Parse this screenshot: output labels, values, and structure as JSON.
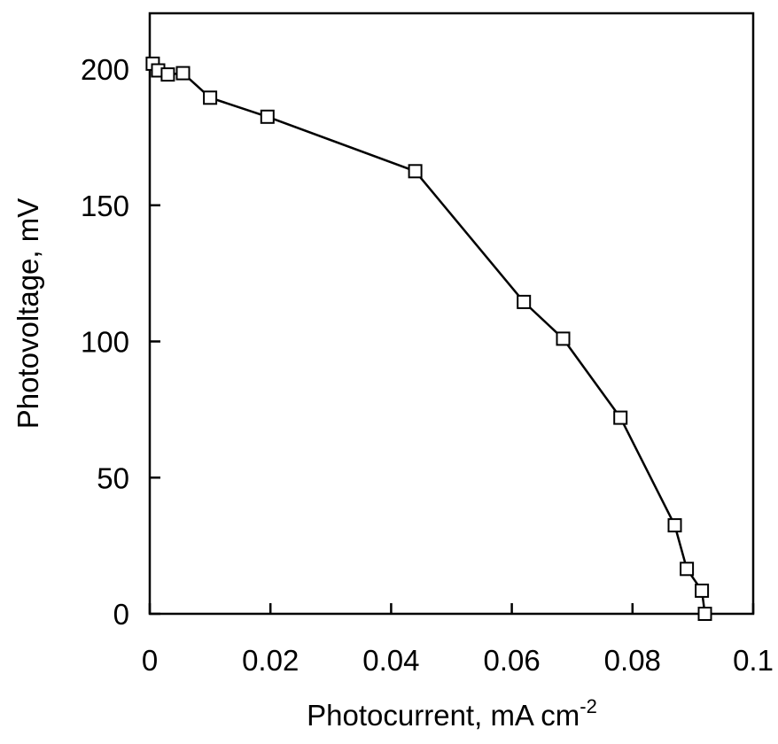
{
  "chart_data": {
    "type": "line",
    "xlabel": "Photocurrent, mA cm",
    "xlabel_superscript": "-2",
    "ylabel": "Photovoltage, mV",
    "xlim": [
      0,
      0.1
    ],
    "ylim": [
      0,
      200
    ],
    "x_ticks": [
      0,
      0.02,
      0.04,
      0.06,
      0.08,
      0.1
    ],
    "x_tick_labels": [
      "0",
      "0.02",
      "0.04",
      "0.06",
      "0.08",
      "0.1"
    ],
    "y_ticks": [
      0,
      50,
      100,
      150,
      200
    ],
    "y_tick_labels": [
      "0",
      "50",
      "100",
      "150",
      "200"
    ],
    "grid": false,
    "marker": "open-square",
    "line_color": "#000000",
    "series": [
      {
        "x": [
          0.0005,
          0.0014,
          0.003,
          0.0055,
          0.01,
          0.0195,
          0.044,
          0.062,
          0.0685,
          0.078,
          0.087,
          0.089,
          0.0915,
          0.092
        ],
        "y": [
          202,
          199.5,
          198,
          198.5,
          189.5,
          182.5,
          162.5,
          114.5,
          101,
          72,
          32.5,
          16.5,
          8.5,
          0
        ]
      }
    ]
  }
}
